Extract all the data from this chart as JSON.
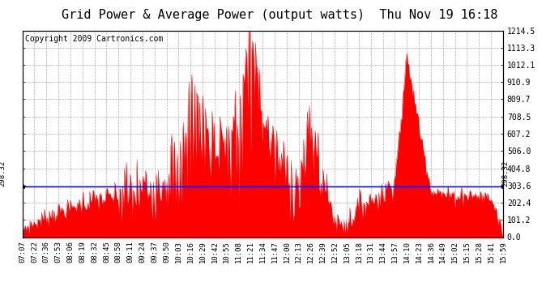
{
  "title": "Grid Power & Average Power (output watts)  Thu Nov 19 16:18",
  "copyright": "Copyright 2009 Cartronics.com",
  "avg_value": 298.32,
  "avg_label": "298.32",
  "y_max": 1214.5,
  "y_min": 0.0,
  "ytick_labels": [
    "0.0",
    "101.2",
    "202.4",
    "303.6",
    "404.8",
    "506.0",
    "607.2",
    "708.5",
    "809.7",
    "910.9",
    "1012.1",
    "1113.3",
    "1214.5"
  ],
  "ytick_values": [
    0.0,
    101.2,
    202.4,
    303.6,
    404.8,
    506.0,
    607.2,
    708.5,
    809.7,
    910.9,
    1012.1,
    1113.3,
    1214.5
  ],
  "xtick_labels": [
    "07:07",
    "07:22",
    "07:36",
    "07:53",
    "08:06",
    "08:19",
    "08:32",
    "08:45",
    "08:58",
    "09:11",
    "09:24",
    "09:37",
    "09:50",
    "10:03",
    "10:16",
    "10:29",
    "10:42",
    "10:55",
    "11:08",
    "11:21",
    "11:34",
    "11:47",
    "12:00",
    "12:13",
    "12:26",
    "12:39",
    "12:52",
    "13:05",
    "13:18",
    "13:31",
    "13:44",
    "13:57",
    "14:10",
    "14:23",
    "14:36",
    "14:49",
    "15:02",
    "15:15",
    "15:28",
    "15:41",
    "15:59"
  ],
  "fill_color": "#ff0000",
  "avg_line_color": "#0000ff",
  "background_color": "#ffffff",
  "grid_color": "#999999",
  "border_color": "#000000",
  "title_fontsize": 11,
  "copyright_fontsize": 7,
  "tick_fontsize": 7
}
